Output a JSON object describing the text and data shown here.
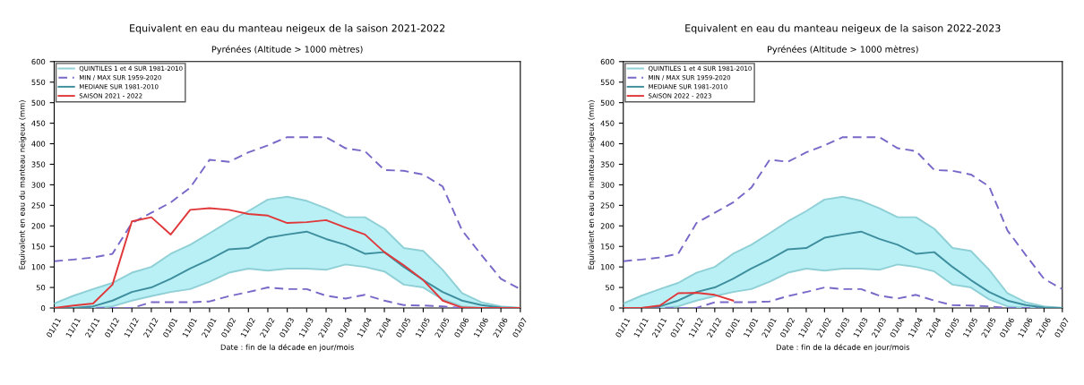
{
  "chart_data": [
    {
      "type": "line",
      "title": "Equivalent en eau du manteau neigeux de la saison 2021-2022",
      "subtitle": "Pyrénées (Altitude > 1000 mètres)",
      "ylabel": "Equivalent en eau du manteau neigeux (mm)",
      "xlabel": "Date : fin de la décade en jour/mois",
      "categories": [
        "01/11",
        "11/11",
        "21/11",
        "01/12",
        "11/12",
        "21/12",
        "01/01",
        "11/01",
        "21/01",
        "01/02",
        "11/02",
        "21/02",
        "01/03",
        "11/03",
        "21/03",
        "01/04",
        "11/04",
        "21/04",
        "01/05",
        "11/05",
        "21/05",
        "01/06",
        "11/06",
        "21/06",
        "01/07"
      ],
      "ylim": [
        0,
        600
      ],
      "yticks": [
        0,
        50,
        100,
        150,
        200,
        250,
        300,
        350,
        400,
        450,
        500,
        550,
        600
      ],
      "legend": "top left",
      "series": [
        {
          "name": "QUINTILES 1 et 4 SUR 1981-2010",
          "color": "#8fcfd6",
          "line_style": "solid",
          "values": [
            11,
            30,
            46,
            61,
            86,
            100,
            132,
            154,
            182,
            211,
            236,
            264,
            271,
            261,
            243,
            221,
            221,
            193,
            146,
            139,
            93,
            36,
            14,
            4,
            0
          ]
        },
        {
          "color": "#8fcfd6",
          "line_style": "solid",
          "values": [
            0,
            0,
            0,
            4,
            18,
            29,
            39,
            46,
            64,
            86,
            96,
            91,
            96,
            96,
            93,
            106,
            100,
            89,
            57,
            50,
            21,
            4,
            0,
            0,
            0
          ]
        },
        {
          "name": "MIN / MAX SUR 1959-2020",
          "color": "#7a68c8",
          "line_style": "dashed",
          "values": [
            114,
            118,
            123,
            132,
            207,
            232,
            257,
            293,
            361,
            356,
            379,
            396,
            416,
            416,
            416,
            389,
            382,
            336,
            334,
            325,
            296,
            189,
            129,
            71,
            46
          ]
        },
        {
          "color": "#7a68c8",
          "line_style": "dashed",
          "values": [
            0,
            0,
            0,
            0,
            0,
            14,
            14,
            14,
            16,
            29,
            39,
            50,
            46,
            46,
            30,
            23,
            32,
            18,
            7,
            6,
            4,
            0,
            0,
            0,
            0
          ]
        },
        {
          "name": "MEDIANE SUR 1981-2010",
          "color": "#3e8e9e",
          "line_style": "solid",
          "values": [
            0,
            0,
            4,
            18,
            39,
            50,
            71,
            96,
            118,
            143,
            146,
            171,
            179,
            186,
            168,
            154,
            132,
            136,
            100,
            68,
            39,
            18,
            7,
            1,
            0
          ],
          "lower": [
            0,
            0,
            0,
            4,
            18,
            29,
            39,
            46,
            64,
            86,
            96,
            91,
            96,
            96,
            93,
            106,
            100,
            89,
            57,
            50,
            21,
            4,
            0,
            0,
            0
          ],
          "upper": [
            11,
            30,
            46,
            61,
            86,
            100,
            132,
            154,
            182,
            211,
            236,
            264,
            271,
            261,
            243,
            221,
            221,
            193,
            146,
            139,
            93,
            36,
            14,
            4,
            0
          ]
        },
        {
          "name": "SAISON 2021 - 2022",
          "color": "#e0383a",
          "line_style": "solid",
          "values": [
            0,
            6,
            11,
            57,
            211,
            221,
            179,
            239,
            243,
            239,
            229,
            225,
            207,
            209,
            214,
            196,
            179,
            136,
            104,
            68,
            18,
            1,
            0,
            0,
            0
          ]
        }
      ]
    },
    {
      "type": "line",
      "title": "Equivalent en eau du manteau neigeux de la saison 2022-2023",
      "subtitle": "Pyrénées (Altitude > 1000 mètres)",
      "ylabel": "Equivalent en eau du manteau neigeux (mm)",
      "xlabel": "Date : fin de la décade en jour/mois",
      "categories": [
        "01/11",
        "11/11",
        "21/11",
        "01/12",
        "11/12",
        "21/12",
        "01/01",
        "11/01",
        "21/01",
        "01/02",
        "11/02",
        "21/02",
        "01/03",
        "11/03",
        "21/03",
        "01/04",
        "11/04",
        "21/04",
        "01/05",
        "11/05",
        "21/05",
        "01/06",
        "11/06",
        "21/06",
        "01/07"
      ],
      "ylim": [
        0,
        600
      ],
      "yticks": [
        0,
        50,
        100,
        150,
        200,
        250,
        300,
        350,
        400,
        450,
        500,
        550,
        600
      ],
      "legend": "top left",
      "series": [
        {
          "name": "QUINTILES 1 et 4 SUR 1981-2010",
          "color": "#8fcfd6",
          "line_style": "solid",
          "values": [
            11,
            30,
            46,
            61,
            86,
            100,
            132,
            154,
            182,
            211,
            236,
            264,
            271,
            261,
            243,
            221,
            221,
            193,
            146,
            139,
            93,
            36,
            14,
            4,
            0
          ]
        },
        {
          "color": "#8fcfd6",
          "line_style": "solid",
          "values": [
            0,
            0,
            0,
            4,
            18,
            29,
            39,
            46,
            64,
            86,
            96,
            91,
            96,
            96,
            93,
            106,
            100,
            89,
            57,
            50,
            21,
            4,
            0,
            0,
            0
          ]
        },
        {
          "name": "MIN / MAX SUR 1959-2020",
          "color": "#7a68c8",
          "line_style": "dashed",
          "values": [
            114,
            118,
            123,
            132,
            207,
            232,
            257,
            293,
            361,
            356,
            379,
            396,
            416,
            416,
            416,
            389,
            382,
            336,
            334,
            325,
            296,
            189,
            129,
            71,
            46
          ]
        },
        {
          "color": "#7a68c8",
          "line_style": "dashed",
          "values": [
            0,
            0,
            0,
            0,
            0,
            14,
            14,
            14,
            16,
            29,
            39,
            50,
            46,
            46,
            30,
            23,
            32,
            18,
            7,
            6,
            4,
            0,
            0,
            0,
            0
          ]
        },
        {
          "name": "MEDIANE SUR 1981-2010",
          "color": "#3e8e9e",
          "line_style": "solid",
          "values": [
            0,
            0,
            4,
            18,
            39,
            50,
            71,
            96,
            118,
            143,
            146,
            171,
            179,
            186,
            168,
            154,
            132,
            136,
            100,
            68,
            39,
            18,
            7,
            1,
            0
          ],
          "lower": [
            0,
            0,
            0,
            4,
            18,
            29,
            39,
            46,
            64,
            86,
            96,
            91,
            96,
            96,
            93,
            106,
            100,
            89,
            57,
            50,
            21,
            4,
            0,
            0,
            0
          ],
          "upper": [
            11,
            30,
            46,
            61,
            86,
            100,
            132,
            154,
            182,
            211,
            236,
            264,
            271,
            261,
            243,
            221,
            221,
            193,
            146,
            139,
            93,
            36,
            14,
            4,
            0
          ]
        },
        {
          "name": "SAISON 2022 - 2023",
          "color": "#e0383a",
          "line_style": "solid",
          "values": [
            0,
            0,
            6,
            36,
            37,
            32,
            18,
            null,
            null,
            null,
            null,
            null,
            null,
            null,
            null,
            null,
            null,
            null,
            null,
            null,
            null,
            null,
            null,
            null,
            null
          ]
        }
      ]
    }
  ]
}
